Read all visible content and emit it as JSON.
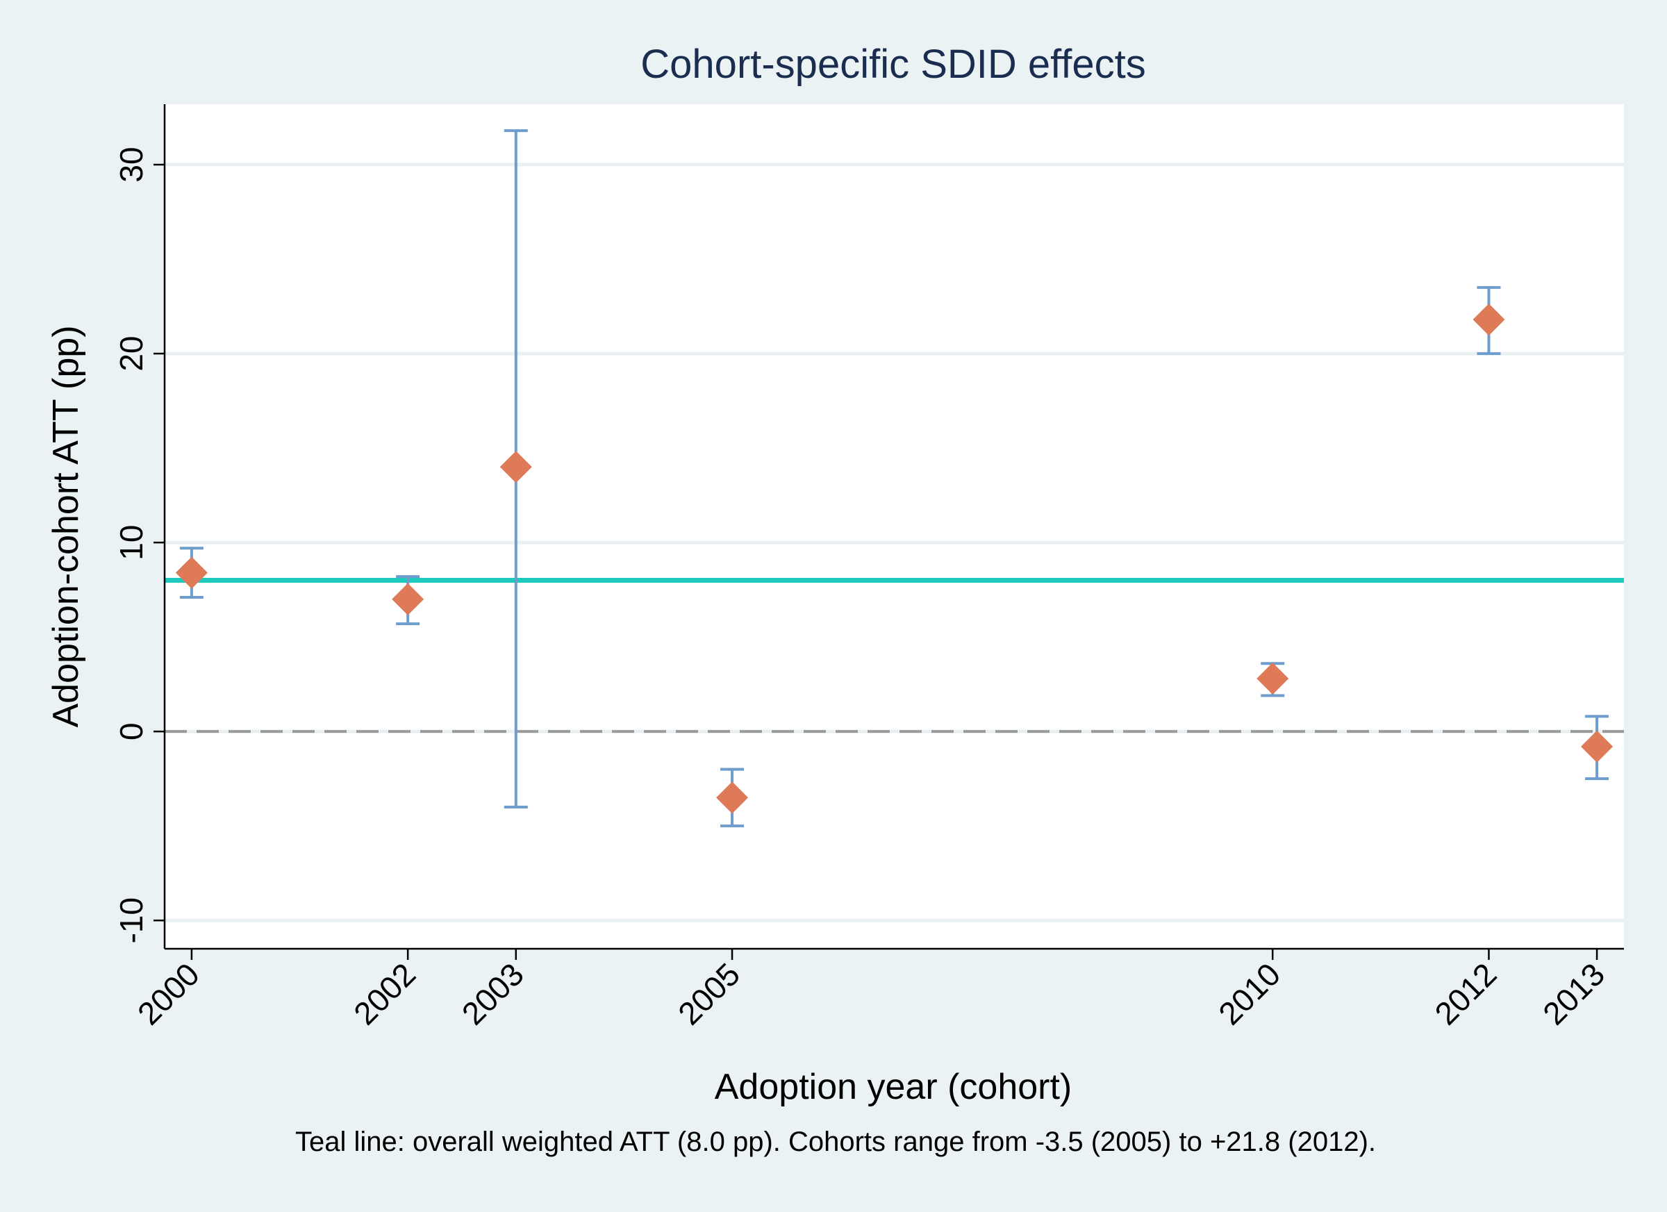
{
  "chart_data": {
    "type": "scatter",
    "title": "Cohort-specific SDID effects",
    "xlabel": "Adoption year (cohort)",
    "ylabel": "Adoption-cohort ATT (pp)",
    "note": "Teal line: overall weighted ATT (8.0 pp). Cohorts range from -3.5 (2005) to +21.8 (2012).",
    "x_ticks": [
      "2000",
      "2002",
      "2003",
      "2005",
      "2010",
      "2012",
      "2013"
    ],
    "y_ticks": [
      "-10",
      "0",
      "10",
      "20",
      "30"
    ],
    "xlim": [
      1999.75,
      2013.25
    ],
    "ylim": [
      -11.5,
      33.2
    ],
    "grid": true,
    "reference_lines": [
      {
        "type": "overall_att",
        "value": 8.0,
        "color": "#1ec9bd",
        "style": "solid"
      },
      {
        "type": "zero",
        "value": 0,
        "color": "#9a9a9a",
        "style": "dashed"
      }
    ],
    "points": [
      {
        "x": 2000,
        "y": 8.4,
        "ci_low": 7.1,
        "ci_high": 9.7
      },
      {
        "x": 2002,
        "y": 7.0,
        "ci_low": 5.7,
        "ci_high": 8.2
      },
      {
        "x": 2003,
        "y": 14.0,
        "ci_low": -4.0,
        "ci_high": 31.8
      },
      {
        "x": 2005,
        "y": -3.5,
        "ci_low": -5.0,
        "ci_high": -2.0
      },
      {
        "x": 2010,
        "y": 2.8,
        "ci_low": 1.9,
        "ci_high": 3.6
      },
      {
        "x": 2012,
        "y": 21.8,
        "ci_low": 20.0,
        "ci_high": 23.5
      },
      {
        "x": 2013,
        "y": -0.8,
        "ci_low": -2.5,
        "ci_high": 0.8
      }
    ],
    "colors": {
      "marker": "#de7a58",
      "ci": "#6e9ccc",
      "overall_line": "#1ec9bd",
      "zero_line": "#9a9a9a",
      "grid": "#e9f0f1",
      "title": "#1a2c4f"
    }
  }
}
